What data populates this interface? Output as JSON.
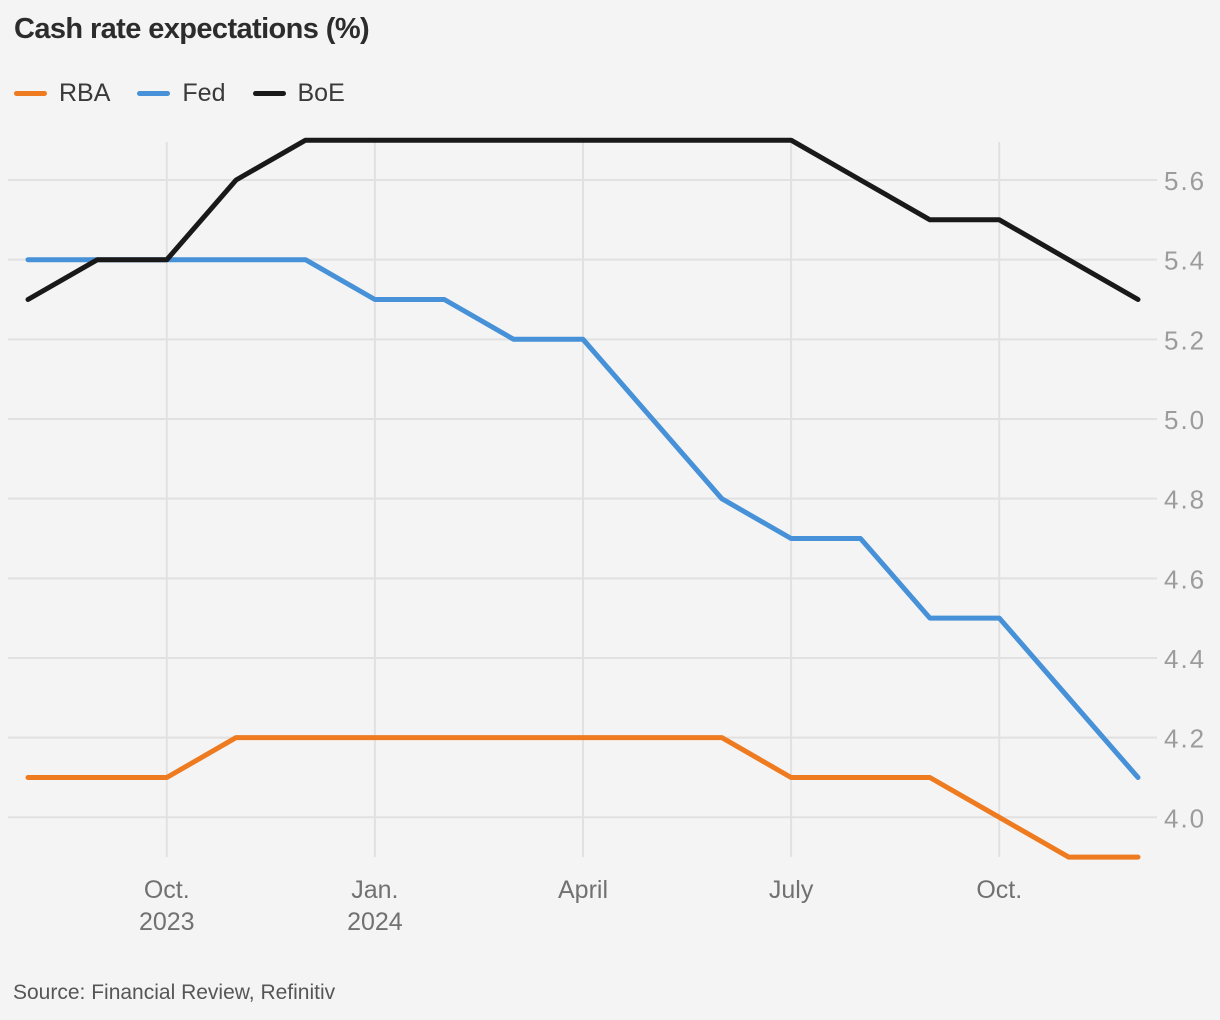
{
  "chart_data": {
    "type": "line",
    "title": "Cash rate expectations (%)",
    "xlabel": "",
    "ylabel": "",
    "x": [
      "Aug. 2023",
      "Sep. 2023",
      "Oct. 2023",
      "Nov. 2023",
      "Dec. 2023",
      "Jan. 2024",
      "Feb. 2024",
      "Mar. 2024",
      "April 2024",
      "May 2024",
      "June 2024",
      "July 2024",
      "Aug. 2024",
      "Sep. 2024",
      "Oct. 2024",
      "Nov. 2024",
      "Dec. 2024"
    ],
    "series": [
      {
        "name": "RBA",
        "color": "#ee7b20",
        "values": [
          4.1,
          4.1,
          4.1,
          4.2,
          4.2,
          4.2,
          4.2,
          4.2,
          4.2,
          4.2,
          4.2,
          4.1,
          4.1,
          4.1,
          4.0,
          3.9,
          3.9
        ]
      },
      {
        "name": "Fed",
        "color": "#4691d7",
        "values": [
          5.4,
          5.4,
          5.4,
          5.4,
          5.4,
          5.3,
          5.3,
          5.2,
          5.2,
          5.0,
          4.8,
          4.7,
          4.7,
          4.5,
          4.5,
          4.3,
          4.1
        ]
      },
      {
        "name": "BoE",
        "color": "#191919",
        "values": [
          5.3,
          5.4,
          5.4,
          5.6,
          5.7,
          5.7,
          5.7,
          5.7,
          5.7,
          5.7,
          5.7,
          5.7,
          5.6,
          5.5,
          5.5,
          5.4,
          5.3
        ]
      }
    ],
    "x_ticks": [
      {
        "index": 2,
        "lines": [
          "Oct.",
          "2023"
        ]
      },
      {
        "index": 5,
        "lines": [
          "Jan.",
          "2024"
        ]
      },
      {
        "index": 8,
        "lines": [
          "April"
        ]
      },
      {
        "index": 11,
        "lines": [
          "July"
        ]
      },
      {
        "index": 14,
        "lines": [
          "Oct."
        ]
      }
    ],
    "y_ticks": [
      "5.6",
      "5.4",
      "5.2",
      "5.0",
      "4.8",
      "4.6",
      "4.4",
      "4.2",
      "4.0"
    ],
    "ylim": [
      3.85,
      5.75
    ],
    "grid": true,
    "legend_position": "top-left"
  },
  "colors": {
    "background": "#f4f4f4",
    "gridline": "#e1e1e1",
    "title_text": "#2c2c2c",
    "legend_text": "#3a3a3a",
    "x_tick_text": "#717171",
    "y_tick_text": "#9c9c9c",
    "source_text": "#565656"
  },
  "source": "Source: Financial Review, Refinitiv"
}
